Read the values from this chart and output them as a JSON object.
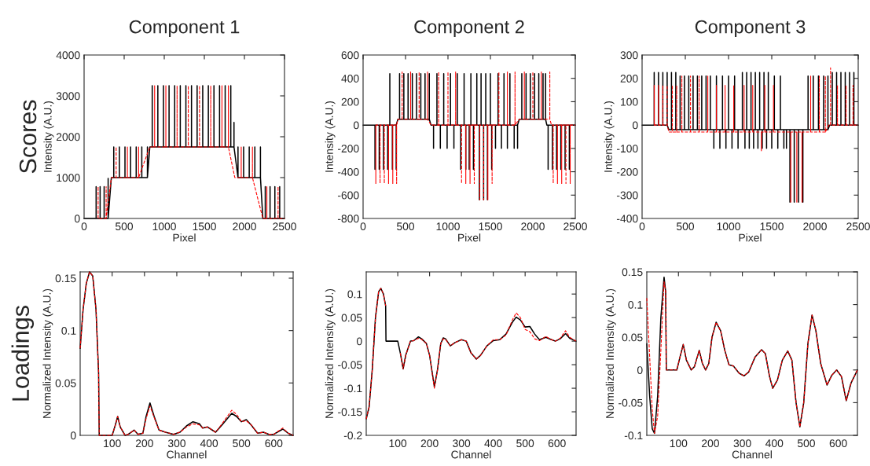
{
  "chart_data": [
    {
      "type": "line",
      "title": "Component 1",
      "xlabel": "Pixel",
      "ylabel": "Intensity (A.U.)",
      "annotations": [
        "Scores"
      ],
      "xlim": [
        0,
        2500
      ],
      "ylim": [
        0,
        4000
      ],
      "xticks": [
        0,
        500,
        1000,
        1500,
        2000,
        2500
      ],
      "yticks": [
        0,
        1000,
        2000,
        3000,
        4000
      ],
      "series": [
        {
          "color": "#000000",
          "line_style": "solid",
          "x": [
            0,
            150,
            150,
            150,
            200,
            200,
            200,
            250,
            250,
            250,
            300,
            300,
            300,
            340,
            370,
            370,
            370,
            440,
            440,
            440,
            510,
            510,
            510,
            580,
            580,
            580,
            650,
            650,
            650,
            720,
            720,
            720,
            790,
            790,
            790,
            820,
            850,
            850,
            850,
            920,
            920,
            920,
            990,
            990,
            990,
            1060,
            1060,
            1060,
            1130,
            1130,
            1130,
            1200,
            1200,
            1200,
            1270,
            1270,
            1270,
            1340,
            1340,
            1340,
            1410,
            1410,
            1410,
            1480,
            1480,
            1480,
            1550,
            1550,
            1550,
            1620,
            1620,
            1620,
            1690,
            1690,
            1690,
            1760,
            1760,
            1760,
            1830,
            1830,
            1830,
            1870,
            1870,
            1870,
            1920,
            1920,
            1920,
            1990,
            1990,
            1990,
            2060,
            2060,
            2060,
            2130,
            2130,
            2130,
            2200,
            2200,
            2200,
            2230,
            2260,
            2260,
            2260,
            2320,
            2320,
            2320,
            2380,
            2380,
            2380,
            2440,
            2440,
            2440,
            2500
          ],
          "values": [
            0,
            0,
            780,
            0,
            0,
            780,
            0,
            0,
            780,
            0,
            0,
            980,
            0,
            1000,
            1000,
            1750,
            1000,
            1000,
            1750,
            1000,
            1000,
            1750,
            1000,
            1000,
            1750,
            1000,
            1000,
            1750,
            1000,
            1000,
            1750,
            1000,
            1000,
            1750,
            1000,
            1750,
            1750,
            3250,
            1750,
            1750,
            3250,
            1750,
            1750,
            3250,
            1750,
            1750,
            3250,
            1750,
            1750,
            3250,
            1750,
            1750,
            3250,
            1750,
            1750,
            3250,
            1750,
            1750,
            3250,
            1750,
            1750,
            3250,
            1750,
            1750,
            3250,
            1750,
            1750,
            3250,
            1750,
            1750,
            3250,
            1750,
            1750,
            3250,
            1750,
            1750,
            3250,
            1750,
            1750,
            3250,
            1750,
            1750,
            2350,
            1750,
            1000,
            1750,
            1000,
            1000,
            1750,
            1000,
            1000,
            1750,
            1000,
            1000,
            1750,
            1000,
            1000,
            1750,
            1000,
            0,
            0,
            780,
            0,
            0,
            780,
            0,
            0,
            780,
            0,
            0,
            780,
            0,
            0
          ]
        },
        {
          "color": "#ff0000",
          "line_style": "dashed",
          "x": [
            175,
            175,
            175,
            275,
            275,
            275,
            340,
            400,
            400,
            400,
            540,
            540,
            540,
            680,
            680,
            680,
            820,
            880,
            880,
            880,
            1020,
            1020,
            1020,
            1160,
            1160,
            1160,
            1300,
            1300,
            1300,
            1440,
            1440,
            1440,
            1580,
            1580,
            1580,
            1720,
            1720,
            1720,
            1800,
            1800,
            1800,
            1880,
            1960,
            1960,
            1960,
            2100,
            2100,
            2100,
            2230,
            2280,
            2280,
            2280,
            2420,
            2420,
            2420,
            2500
          ],
          "values": [
            0,
            780,
            0,
            0,
            780,
            0,
            1000,
            1000,
            1750,
            1000,
            1000,
            1750,
            1000,
            1000,
            1750,
            1000,
            1750,
            1750,
            3250,
            1750,
            1750,
            3250,
            1750,
            1750,
            3250,
            1750,
            1750,
            3250,
            1750,
            1750,
            3250,
            1750,
            1750,
            3250,
            1750,
            1750,
            3250,
            1750,
            1750,
            3250,
            1750,
            1000,
            1000,
            1750,
            1000,
            1000,
            1750,
            1000,
            0,
            0,
            780,
            0,
            0,
            780,
            0,
            0
          ]
        }
      ]
    },
    {
      "type": "line",
      "title": "Component 2",
      "xlabel": "Pixel",
      "ylabel": "Intensity (A.U.)",
      "xlim": [
        0,
        2500
      ],
      "ylim": [
        -800,
        600
      ],
      "xticks": [
        0,
        500,
        1000,
        1500,
        2000,
        2500
      ],
      "yticks": [
        -800,
        -600,
        -400,
        -200,
        0,
        200,
        400,
        600
      ],
      "series": [
        {
          "color": "#000000",
          "line_style": "solid",
          "x": [
            0,
            140,
            140,
            140,
            190,
            190,
            190,
            240,
            240,
            240,
            290,
            290,
            290,
            315,
            315,
            315,
            345,
            345,
            345,
            390,
            390,
            390,
            410,
            430,
            430,
            430,
            480,
            480,
            480,
            530,
            530,
            530,
            580,
            580,
            580,
            630,
            630,
            630,
            680,
            680,
            680,
            730,
            730,
            730,
            780,
            780,
            780,
            800,
            830,
            830,
            830,
            870,
            870,
            870,
            910,
            910,
            910,
            950,
            950,
            950,
            990,
            990,
            990,
            1030,
            1030,
            1030,
            1070,
            1070,
            1070,
            1110,
            1110,
            1110,
            1150,
            1150,
            1150,
            1190,
            1190,
            1190,
            1210,
            1210,
            1210,
            1250,
            1250,
            1250,
            1270,
            1270,
            1270,
            1300,
            1300,
            1300,
            1340,
            1340,
            1340,
            1370,
            1370,
            1370,
            1390,
            1390,
            1390,
            1420,
            1420,
            1420,
            1445,
            1445,
            1445,
            1465,
            1465,
            1465,
            1500,
            1500,
            1500,
            1515,
            1515,
            1515,
            1560,
            1560,
            1560,
            1590,
            1590,
            1590,
            1630,
            1630,
            1630,
            1660,
            1660,
            1660,
            1700,
            1700,
            1700,
            1730,
            1730,
            1730,
            1780,
            1780,
            1780,
            1820,
            1820,
            1820,
            1840,
            1870,
            1870,
            1870,
            1920,
            1920,
            1920,
            1970,
            1970,
            1970,
            2020,
            2020,
            2020,
            2070,
            2070,
            2070,
            2120,
            2120,
            2120,
            2150,
            2150,
            2150,
            2165,
            2180,
            2180,
            2180,
            2230,
            2230,
            2230,
            2280,
            2280,
            2280,
            2330,
            2330,
            2330,
            2380,
            2380,
            2380,
            2430,
            2430,
            2430,
            2500
          ],
          "values": [
            0,
            0,
            -380,
            0,
            0,
            -380,
            0,
            0,
            -380,
            0,
            0,
            -380,
            0,
            0,
            440,
            0,
            0,
            -380,
            0,
            0,
            -380,
            0,
            50,
            50,
            440,
            50,
            50,
            440,
            50,
            50,
            440,
            50,
            50,
            440,
            50,
            50,
            440,
            50,
            50,
            440,
            50,
            50,
            440,
            50,
            50,
            440,
            50,
            0,
            0,
            -200,
            0,
            0,
            440,
            0,
            0,
            -200,
            0,
            0,
            440,
            0,
            0,
            -200,
            0,
            0,
            440,
            0,
            0,
            -200,
            0,
            0,
            440,
            0,
            0,
            -380,
            0,
            0,
            440,
            0,
            0,
            -380,
            0,
            0,
            -380,
            0,
            0,
            440,
            0,
            0,
            -380,
            0,
            0,
            440,
            0,
            0,
            -640,
            0,
            0,
            440,
            0,
            0,
            -640,
            0,
            0,
            440,
            0,
            0,
            -640,
            0,
            0,
            440,
            0,
            0,
            -380,
            0,
            0,
            -200,
            0,
            0,
            440,
            0,
            0,
            -200,
            0,
            0,
            440,
            0,
            0,
            -200,
            0,
            0,
            440,
            0,
            0,
            -200,
            0,
            0,
            -200,
            0,
            50,
            50,
            440,
            50,
            50,
            440,
            50,
            50,
            440,
            50,
            50,
            440,
            50,
            50,
            440,
            50,
            50,
            440,
            50,
            50,
            440,
            50,
            0,
            0,
            -380,
            0,
            0,
            -380,
            0,
            0,
            -380,
            0,
            0,
            -380,
            0,
            0,
            -380,
            0,
            0,
            -380,
            0,
            0
          ]
        },
        {
          "color": "#ff0000",
          "line_style": "dashed",
          "x": [
            150,
            150,
            150,
            200,
            200,
            200,
            250,
            250,
            250,
            300,
            300,
            300,
            350,
            350,
            350,
            395,
            395,
            395,
            410,
            460,
            460,
            460,
            560,
            560,
            560,
            660,
            660,
            660,
            760,
            760,
            760,
            800,
            890,
            890,
            890,
            1000,
            1000,
            1000,
            1090,
            1090,
            1090,
            1160,
            1160,
            1160,
            1210,
            1210,
            1210,
            1260,
            1260,
            1260,
            1310,
            1310,
            1310,
            1375,
            1375,
            1375,
            1420,
            1420,
            1420,
            1470,
            1470,
            1470,
            1520,
            1520,
            1520,
            1600,
            1600,
            1600,
            1700,
            1700,
            1700,
            1790,
            1790,
            1790,
            1840,
            1900,
            1900,
            1900,
            2000,
            2000,
            2000,
            2100,
            2100,
            2100,
            2200,
            2200,
            2200,
            2220,
            2240,
            2240,
            2240,
            2290,
            2290,
            2290,
            2340,
            2340,
            2340,
            2390,
            2390,
            2390,
            2440,
            2440,
            2440,
            2500
          ],
          "values": [
            0,
            -500,
            0,
            0,
            -500,
            0,
            0,
            -500,
            0,
            0,
            -500,
            0,
            0,
            -500,
            0,
            0,
            -500,
            0,
            50,
            50,
            455,
            50,
            50,
            455,
            50,
            50,
            455,
            50,
            50,
            455,
            50,
            0,
            0,
            455,
            0,
            0,
            455,
            0,
            0,
            455,
            0,
            0,
            -500,
            0,
            0,
            -500,
            0,
            0,
            -500,
            0,
            0,
            -500,
            0,
            0,
            -640,
            0,
            0,
            -640,
            0,
            0,
            -640,
            0,
            0,
            -500,
            0,
            0,
            455,
            0,
            0,
            455,
            0,
            0,
            455,
            0,
            50,
            50,
            455,
            50,
            50,
            455,
            50,
            50,
            455,
            50,
            50,
            455,
            50,
            0,
            0,
            -500,
            0,
            0,
            -500,
            0,
            0,
            -500,
            0,
            0,
            -500,
            0,
            0,
            -500,
            0,
            0
          ]
        }
      ]
    },
    {
      "type": "line",
      "title": "Component 3",
      "xlabel": "Pixel",
      "ylabel": "Intensity (A.U.)",
      "xlim": [
        0,
        2500
      ],
      "ylim": [
        -400,
        300
      ],
      "xticks": [
        0,
        500,
        1000,
        1500,
        2000,
        2500
      ],
      "yticks": [
        -400,
        -300,
        -200,
        -100,
        0,
        100,
        200,
        300
      ],
      "series": [
        {
          "color": "#000000",
          "line_style": "solid",
          "x": [
            0,
            140,
            140,
            140,
            190,
            190,
            190,
            240,
            240,
            240,
            290,
            290,
            290,
            310,
            340,
            340,
            340,
            390,
            390,
            390,
            440,
            440,
            440,
            490,
            490,
            490,
            540,
            540,
            540,
            590,
            590,
            590,
            640,
            640,
            640,
            690,
            690,
            690,
            740,
            740,
            740,
            790,
            790,
            790,
            830,
            830,
            830,
            860,
            860,
            860,
            900,
            900,
            900,
            930,
            930,
            930,
            970,
            970,
            970,
            1000,
            1000,
            1000,
            1040,
            1040,
            1040,
            1070,
            1070,
            1070,
            1110,
            1110,
            1110,
            1160,
            1160,
            1160,
            1190,
            1190,
            1190,
            1210,
            1210,
            1210,
            1240,
            1240,
            1240,
            1260,
            1260,
            1260,
            1290,
            1290,
            1290,
            1310,
            1310,
            1310,
            1340,
            1340,
            1340,
            1360,
            1360,
            1360,
            1390,
            1390,
            1390,
            1410,
            1410,
            1410,
            1440,
            1440,
            1440,
            1460,
            1460,
            1460,
            1500,
            1500,
            1500,
            1530,
            1530,
            1530,
            1570,
            1570,
            1570,
            1600,
            1600,
            1600,
            1640,
            1640,
            1640,
            1670,
            1670,
            1670,
            1710,
            1710,
            1710,
            1760,
            1760,
            1760,
            1810,
            1810,
            1810,
            1860,
            1860,
            1860,
            1920,
            1920,
            1920,
            1980,
            1980,
            1980,
            2040,
            2040,
            2040,
            2100,
            2100,
            2100,
            2150,
            2150,
            2150,
            2170,
            2200,
            2200,
            2200,
            2250,
            2250,
            2250,
            2300,
            2300,
            2300,
            2350,
            2350,
            2350,
            2400,
            2400,
            2400,
            2450,
            2450,
            2450,
            2500
          ],
          "values": [
            0,
            0,
            225,
            0,
            0,
            225,
            0,
            0,
            225,
            0,
            0,
            225,
            0,
            -20,
            -20,
            225,
            -20,
            -20,
            225,
            -20,
            -20,
            210,
            -20,
            -20,
            210,
            -20,
            -20,
            210,
            -20,
            -20,
            210,
            -20,
            -20,
            210,
            -20,
            -20,
            210,
            -20,
            -20,
            210,
            -20,
            -20,
            210,
            -20,
            -20,
            -100,
            -20,
            -20,
            210,
            -20,
            -20,
            -100,
            -20,
            -20,
            210,
            -20,
            -20,
            -100,
            -20,
            -20,
            210,
            -20,
            -20,
            -100,
            -20,
            -20,
            210,
            -20,
            -20,
            -100,
            -20,
            -20,
            225,
            -20,
            -20,
            -100,
            -20,
            -20,
            225,
            -20,
            -20,
            -100,
            -20,
            -20,
            225,
            -20,
            -20,
            -100,
            -20,
            -20,
            225,
            -20,
            -20,
            -100,
            -20,
            -20,
            225,
            -20,
            -20,
            -100,
            -20,
            -20,
            225,
            -20,
            -20,
            -100,
            -20,
            -20,
            225,
            -20,
            -20,
            -100,
            -20,
            -20,
            210,
            -20,
            -20,
            -100,
            -20,
            -20,
            210,
            -20,
            -20,
            -100,
            -20,
            -20,
            -100,
            -20,
            -20,
            -330,
            -20,
            -20,
            -330,
            -20,
            -20,
            -330,
            -20,
            -20,
            -330,
            -20,
            -20,
            210,
            -20,
            -20,
            210,
            -20,
            -20,
            210,
            -20,
            -20,
            210,
            -20,
            -20,
            210,
            -20,
            0,
            0,
            225,
            0,
            0,
            225,
            0,
            0,
            225,
            0,
            0,
            225,
            0,
            0,
            225,
            0,
            0,
            225,
            0,
            0
          ]
        },
        {
          "color": "#ff0000",
          "line_style": "dashed",
          "x": [
            140,
            140,
            140,
            190,
            190,
            190,
            240,
            240,
            240,
            290,
            290,
            290,
            310,
            350,
            350,
            350,
            400,
            400,
            400,
            460,
            460,
            460,
            560,
            560,
            560,
            660,
            660,
            660,
            760,
            760,
            760,
            860,
            860,
            860,
            960,
            960,
            960,
            1060,
            1060,
            1060,
            1180,
            1180,
            1180,
            1280,
            1280,
            1280,
            1380,
            1380,
            1380,
            1420,
            1420,
            1420,
            1520,
            1520,
            1520,
            1720,
            1720,
            1720,
            1790,
            1790,
            1790,
            1850,
            1850,
            1850,
            1950,
            1950,
            1950,
            2050,
            2050,
            2050,
            2120,
            2120,
            2120,
            2160,
            2180,
            2180,
            2180,
            2260,
            2260,
            2260,
            2360,
            2360,
            2360,
            2440,
            2440,
            2440,
            2500
          ],
          "values": [
            0,
            170,
            0,
            0,
            170,
            0,
            0,
            170,
            0,
            0,
            170,
            0,
            -30,
            -30,
            170,
            -30,
            -30,
            170,
            -30,
            -30,
            210,
            -30,
            -30,
            210,
            -30,
            -30,
            210,
            -30,
            -30,
            210,
            -30,
            -30,
            170,
            -30,
            -30,
            170,
            -30,
            -30,
            170,
            -30,
            -30,
            170,
            -30,
            -30,
            170,
            -30,
            -30,
            -110,
            -30,
            -30,
            170,
            -30,
            -30,
            170,
            -30,
            -30,
            -330,
            -30,
            -30,
            -330,
            -30,
            -30,
            -330,
            -30,
            -30,
            210,
            -30,
            -30,
            210,
            -30,
            -30,
            210,
            -30,
            0,
            0,
            245,
            0,
            0,
            170,
            0,
            0,
            170,
            0,
            0,
            170,
            0,
            0
          ]
        }
      ]
    },
    {
      "type": "line",
      "xlabel": "Channel",
      "ylabel": "Normalized Intensity (A.U.)",
      "annotations": [
        "Loadings"
      ],
      "xlim": [
        1,
        660
      ],
      "ylim": [
        0,
        0.156
      ],
      "xticks": [
        100,
        200,
        300,
        400,
        500,
        600
      ],
      "yticks": [
        0,
        0.05,
        0.1,
        0.15
      ],
      "series": [
        {
          "color": "#ff0000",
          "line_style": "dashed",
          "x": [
            1,
            10,
            20,
            30,
            40,
            50,
            58,
            60,
            100,
            110,
            117,
            125,
            140,
            150,
            168,
            180,
            195,
            205,
            217,
            230,
            245,
            265,
            290,
            310,
            330,
            350,
            370,
            380,
            395,
            405,
            420,
            440,
            470,
            485,
            500,
            515,
            530,
            550,
            568,
            585,
            600,
            628,
            645,
            660
          ],
          "values": [
            0.083,
            0.12,
            0.145,
            0.156,
            0.152,
            0.12,
            0.06,
            0,
            0,
            0.01,
            0.018,
            0.008,
            0,
            0.001,
            0.005,
            0.001,
            0.002,
            0.016,
            0.028,
            0.017,
            0.005,
            0.003,
            0.001,
            0.003,
            0.008,
            0.011,
            0.01,
            0.007,
            0.008,
            0.006,
            0.003,
            0.011,
            0.024,
            0.02,
            0.013,
            0.014,
            0.01,
            0.002,
            0.003,
            0.001,
            0.001,
            0.007,
            0.002,
            0
          ]
        },
        {
          "color": "#000000",
          "line_style": "solid",
          "x": [
            1,
            10,
            20,
            30,
            40,
            50,
            58,
            60,
            100,
            110,
            117,
            125,
            140,
            150,
            168,
            180,
            195,
            205,
            217,
            230,
            245,
            265,
            290,
            310,
            330,
            350,
            370,
            380,
            395,
            405,
            420,
            440,
            470,
            485,
            500,
            515,
            530,
            550,
            568,
            585,
            600,
            628,
            645,
            660
          ],
          "values": [
            0.083,
            0.12,
            0.145,
            0.156,
            0.152,
            0.12,
            0.06,
            0,
            0,
            0.01,
            0.018,
            0.008,
            0,
            0.001,
            0.005,
            0.001,
            0.002,
            0.018,
            0.031,
            0.018,
            0.005,
            0.003,
            0.001,
            0.003,
            0.009,
            0.013,
            0.011,
            0.007,
            0.008,
            0.006,
            0.003,
            0.01,
            0.021,
            0.018,
            0.013,
            0.015,
            0.01,
            0.002,
            0.003,
            0.001,
            0.001,
            0.006,
            0.002,
            0
          ]
        }
      ]
    },
    {
      "type": "line",
      "xlabel": "Channel",
      "ylabel": "Normalized Intensity (A.U.)",
      "xlim": [
        1,
        660
      ],
      "ylim": [
        -0.2,
        0.147
      ],
      "xticks": [
        100,
        200,
        300,
        400,
        500,
        600
      ],
      "yticks": [
        -0.2,
        -0.15,
        -0.1,
        -0.05,
        0,
        0.05,
        0.1
      ],
      "series": [
        {
          "color": "#ff0000",
          "line_style": "dashed",
          "x": [
            1,
            10,
            20,
            30,
            40,
            47,
            55,
            62,
            63,
            100,
            108,
            117,
            125,
            140,
            150,
            165,
            175,
            190,
            200,
            215,
            225,
            235,
            243,
            250,
            265,
            280,
            300,
            315,
            330,
            347,
            360,
            380,
            400,
            420,
            440,
            460,
            472,
            485,
            500,
            515,
            530,
            545,
            565,
            580,
            595,
            610,
            627,
            640,
            660
          ],
          "values": [
            -0.165,
            -0.14,
            -0.06,
            0.05,
            0.105,
            0.112,
            0.1,
            0.075,
            null,
            null,
            -0.025,
            -0.059,
            -0.03,
            0,
            0.001,
            0.006,
            0.004,
            -0.005,
            -0.03,
            -0.1,
            -0.06,
            -0.005,
            0.005,
            0.004,
            -0.01,
            -0.003,
            0.003,
            0,
            -0.025,
            -0.038,
            -0.03,
            -0.01,
            0.003,
            0.003,
            0.013,
            0.045,
            0.06,
            0.05,
            0.025,
            0.02,
            0.005,
            0.001,
            0.01,
            0.004,
            0,
            0.006,
            0.022,
            0.008,
            0
          ]
        },
        {
          "color": "#000000",
          "line_style": "solid",
          "x": [
            1,
            10,
            20,
            30,
            40,
            47,
            55,
            62,
            63,
            100,
            108,
            117,
            125,
            140,
            150,
            165,
            175,
            190,
            200,
            215,
            225,
            235,
            243,
            250,
            265,
            280,
            300,
            315,
            330,
            347,
            360,
            380,
            400,
            420,
            440,
            460,
            472,
            485,
            500,
            515,
            530,
            545,
            565,
            580,
            595,
            610,
            627,
            640,
            660
          ],
          "values": [
            -0.165,
            -0.14,
            -0.06,
            0.05,
            0.105,
            0.112,
            0.1,
            0.075,
            0,
            0,
            -0.025,
            -0.059,
            -0.03,
            0,
            0.001,
            0.009,
            0.005,
            -0.005,
            -0.03,
            -0.097,
            -0.06,
            -0.005,
            0.007,
            0.005,
            -0.01,
            -0.003,
            0.003,
            0,
            -0.025,
            -0.038,
            -0.03,
            -0.01,
            0.001,
            0.003,
            0.015,
            0.04,
            0.051,
            0.045,
            0.03,
            0.031,
            0.015,
            0.003,
            0.008,
            0.004,
            0,
            0.005,
            0.016,
            0.006,
            0
          ]
        }
      ]
    },
    {
      "type": "line",
      "xlabel": "Channel",
      "ylabel": "Normalized Intensity (A.U.)",
      "xlim": [
        1,
        660
      ],
      "ylim": [
        -0.1,
        0.15
      ],
      "xticks": [
        100,
        200,
        300,
        400,
        500,
        600
      ],
      "yticks": [
        -0.1,
        -0.05,
        0,
        0.05,
        0.1,
        0.15
      ],
      "series": [
        {
          "color": "#ff0000",
          "line_style": "dashed",
          "x": [
            1,
            10,
            18,
            25,
            35,
            45,
            55,
            60,
            62,
            95,
            105,
            115,
            125,
            140,
            150,
            165,
            175,
            185,
            195,
            205,
            218,
            232,
            245,
            258,
            272,
            290,
            305,
            320,
            340,
            360,
            372,
            385,
            395,
            410,
            425,
            442,
            455,
            468,
            480,
            492,
            505,
            518,
            530,
            545,
            565,
            580,
            595,
            610,
            625,
            640,
            660
          ],
          "values": [
            0.11,
            0.02,
            -0.06,
            -0.097,
            -0.07,
            0.03,
            0.135,
            0.12,
            0,
            0,
            0.02,
            0.039,
            0.015,
            0,
            0.005,
            0.03,
            0.01,
            0,
            0.01,
            0.05,
            0.073,
            0.06,
            0.03,
            0.008,
            0.006,
            -0.005,
            -0.009,
            -0.003,
            0.02,
            0.031,
            0.025,
            -0.01,
            -0.028,
            -0.015,
            0.015,
            0.029,
            0.015,
            -0.05,
            -0.087,
            -0.05,
            0.04,
            0.084,
            0.06,
            0.01,
            -0.023,
            -0.008,
            0,
            -0.01,
            -0.047,
            -0.02,
            0
          ]
        },
        {
          "color": "#000000",
          "line_style": "solid",
          "x": [
            1,
            10,
            18,
            25,
            35,
            45,
            55,
            60,
            62,
            95,
            105,
            115,
            125,
            140,
            150,
            165,
            175,
            185,
            195,
            205,
            218,
            232,
            245,
            258,
            272,
            290,
            305,
            320,
            340,
            360,
            372,
            385,
            395,
            410,
            425,
            442,
            455,
            468,
            480,
            492,
            505,
            518,
            530,
            545,
            565,
            580,
            595,
            610,
            625,
            640,
            660
          ],
          "values": [
            0.04,
            -0.04,
            -0.09,
            -0.097,
            -0.04,
            0.08,
            0.142,
            0.12,
            0,
            0,
            0.02,
            0.039,
            0.015,
            0,
            0.005,
            0.03,
            0.01,
            0,
            0.01,
            0.05,
            0.073,
            0.06,
            0.03,
            0.008,
            0.006,
            -0.005,
            -0.009,
            -0.003,
            0.02,
            0.031,
            0.025,
            -0.01,
            -0.028,
            -0.015,
            0.015,
            0.029,
            0.015,
            -0.05,
            -0.087,
            -0.05,
            0.04,
            0.084,
            0.06,
            0.01,
            -0.023,
            -0.008,
            0,
            -0.01,
            -0.047,
            -0.02,
            0
          ]
        }
      ]
    }
  ]
}
